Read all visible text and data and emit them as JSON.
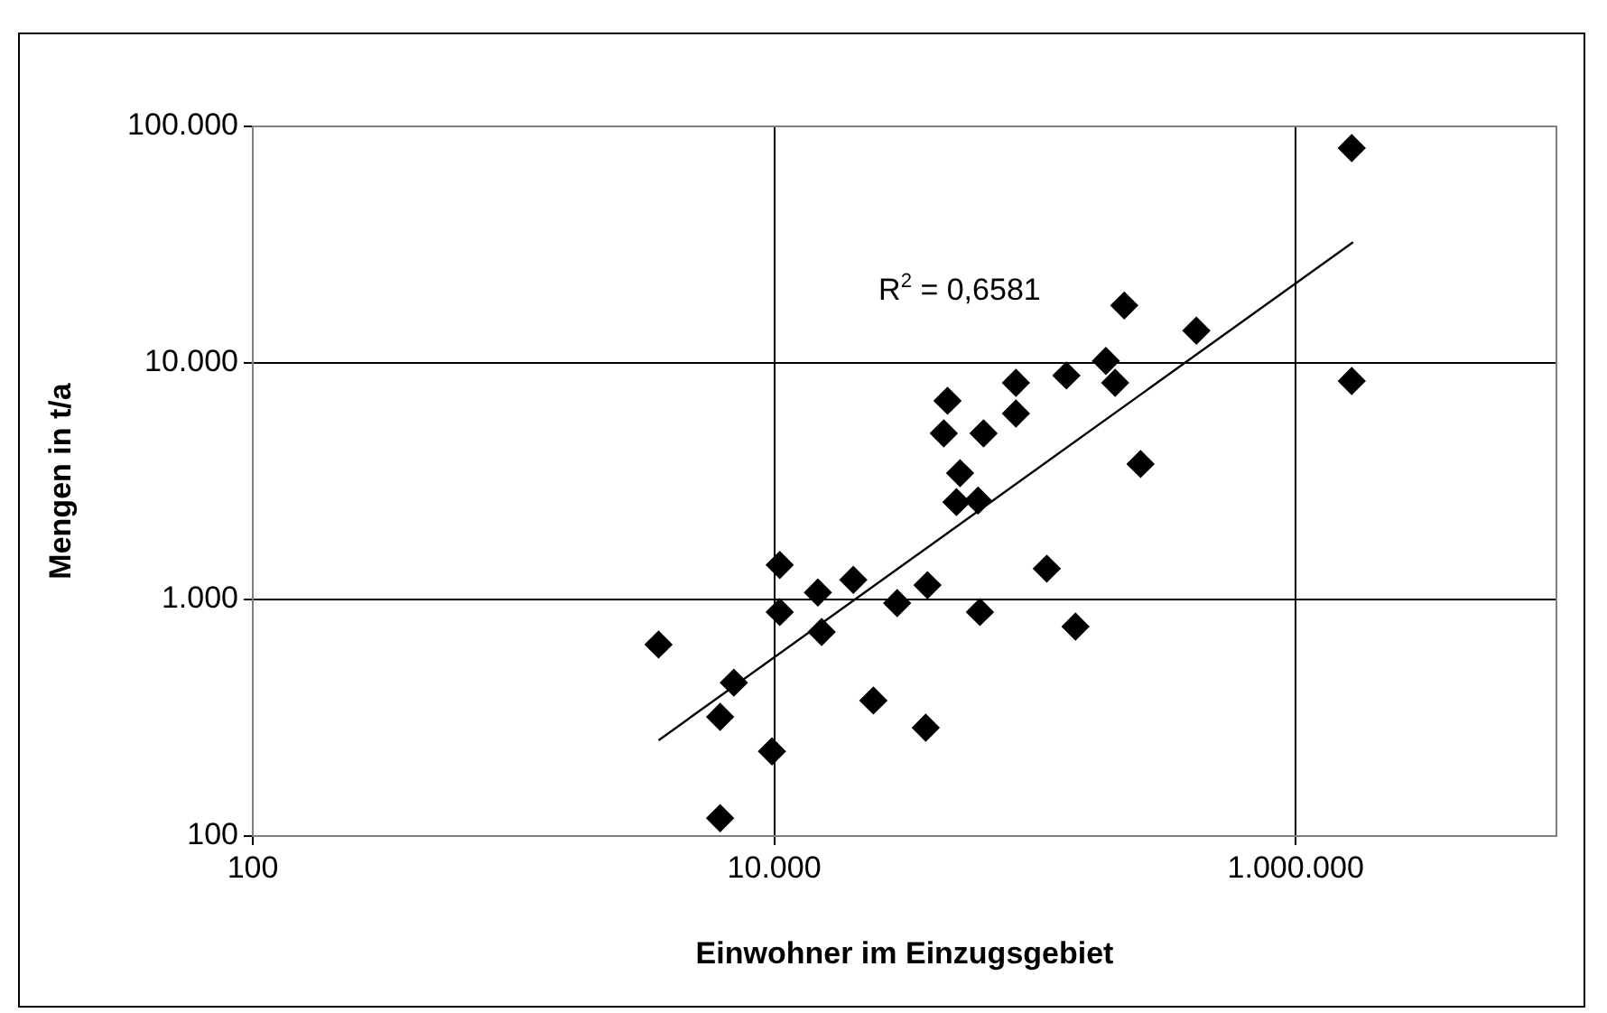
{
  "chart_data": {
    "type": "scatter",
    "xlabel": "Einwohner im Einzugsgebiet",
    "ylabel": "Mengen in t/a",
    "log": "xy",
    "grid": true,
    "legend": false,
    "xlim": [
      100,
      10000000
    ],
    "xticks": [
      {
        "value": 100,
        "label": "100"
      },
      {
        "value": 10000,
        "label": "10.000"
      },
      {
        "value": 1000000,
        "label": "1.000.000"
      }
    ],
    "ylim": [
      100,
      100000
    ],
    "yticks": [
      {
        "value": 100,
        "label": "100"
      },
      {
        "value": 1000,
        "label": "1.000"
      },
      {
        "value": 10000,
        "label": "10.000"
      },
      {
        "value": 100000,
        "label": "100.000"
      }
    ],
    "annotations": [
      "R$^{2}$ = 0,6581"
    ],
    "series": [
      {
        "color": "#000000",
        "marker": "diamond",
        "x": [
          3600,
          6200,
          7000,
          6200,
          9800,
          10500,
          10500,
          14700,
          15200,
          20100,
          24000,
          29600,
          38100,
          38700,
          61500,
          111000,
          143000,
          46200,
          44700,
          63500,
          51600,
          50000,
          60500,
          84500,
          84500,
          132000,
          187000,
          203000,
          220000,
          254000,
          416000,
          1640000,
          1640000
        ],
        "values": [
          645,
          319,
          445,
          119,
          228,
          1400,
          885,
          1070,
          729,
          1210,
          374,
          965,
          287,
          1150,
          885,
          1350,
          768,
          6920,
          5040,
          5040,
          3420,
          2580,
          2620,
          8240,
          6110,
          8850,
          10200,
          8240,
          17500,
          3740,
          13700,
          81000,
          8390
        ]
      },
      {
        "type": "line",
        "color": "#000000",
        "marker": "none",
        "line_style": "solid",
        "x": [
          3600,
          1660000
        ],
        "values": [
          254,
          32400
        ]
      }
    ]
  }
}
